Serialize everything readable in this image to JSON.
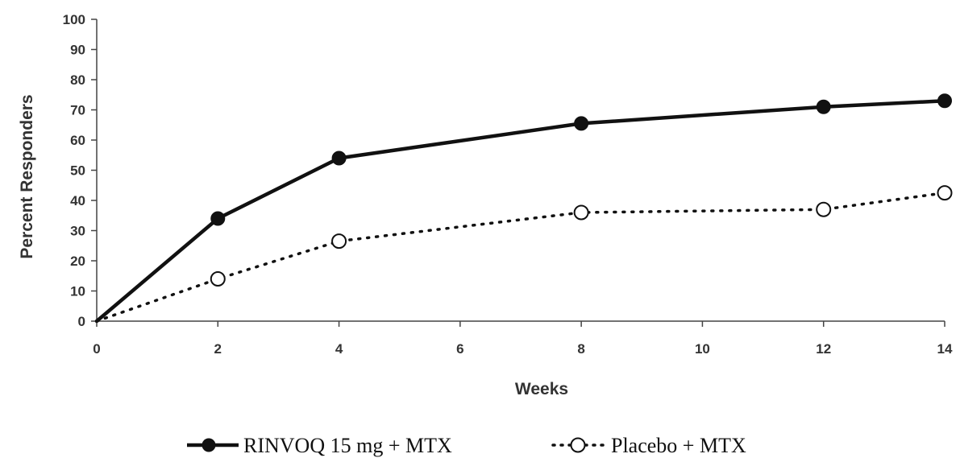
{
  "chart_data": {
    "type": "line",
    "title": "",
    "xlabel": "Weeks",
    "ylabel": "Percent Responders",
    "xlim": [
      0,
      14
    ],
    "ylim": [
      0,
      100
    ],
    "x_ticks": [
      0,
      2,
      4,
      6,
      8,
      10,
      12,
      14
    ],
    "y_ticks": [
      0,
      10,
      20,
      30,
      40,
      50,
      60,
      70,
      80,
      90,
      100
    ],
    "grid": false,
    "legend_position": "bottom",
    "series": [
      {
        "name": "RINVOQ 15 mg + MTX",
        "style": "solid",
        "marker": "filled-circle",
        "color": "#111111",
        "x": [
          0,
          2,
          4,
          8,
          12,
          14
        ],
        "y": [
          0,
          34,
          54,
          65.5,
          71,
          73
        ]
      },
      {
        "name": "Placebo + MTX",
        "style": "dotted",
        "marker": "open-circle",
        "color": "#111111",
        "x": [
          0,
          2,
          4,
          8,
          12,
          14
        ],
        "y": [
          0,
          14,
          26.5,
          36,
          37,
          42.5
        ]
      }
    ]
  }
}
